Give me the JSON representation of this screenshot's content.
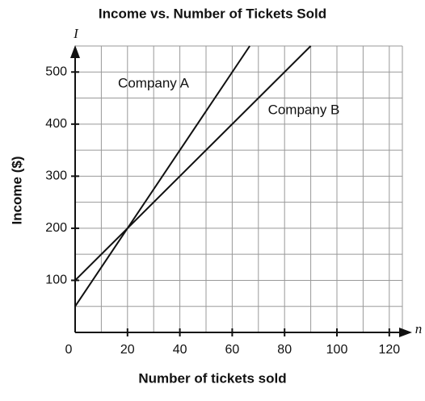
{
  "chart_data": {
    "type": "line",
    "title": "Income vs. Number of Tickets Sold",
    "x_label": "Number of tickets sold",
    "y_label": "Income ($)",
    "x_variable": "n",
    "y_variable": "I",
    "xlim": [
      0,
      125
    ],
    "ylim": [
      0,
      550
    ],
    "xticks": [
      0,
      20,
      40,
      60,
      80,
      100,
      120
    ],
    "yticks": [
      100,
      200,
      300,
      400,
      500
    ],
    "grid_x": [
      10,
      20,
      30,
      40,
      50,
      60,
      70,
      80,
      90,
      100,
      110,
      120
    ],
    "grid_y": [
      50,
      100,
      150,
      200,
      250,
      300,
      350,
      400,
      450,
      500
    ],
    "grid": true,
    "series": [
      {
        "name": "Company A",
        "color": "#111111",
        "x": [
          0,
          20,
          66.7
        ],
        "values": [
          50,
          200,
          550
        ]
      },
      {
        "name": "Company B",
        "color": "#111111",
        "x": [
          0,
          20,
          90
        ],
        "values": [
          100,
          200,
          550
        ]
      }
    ]
  }
}
